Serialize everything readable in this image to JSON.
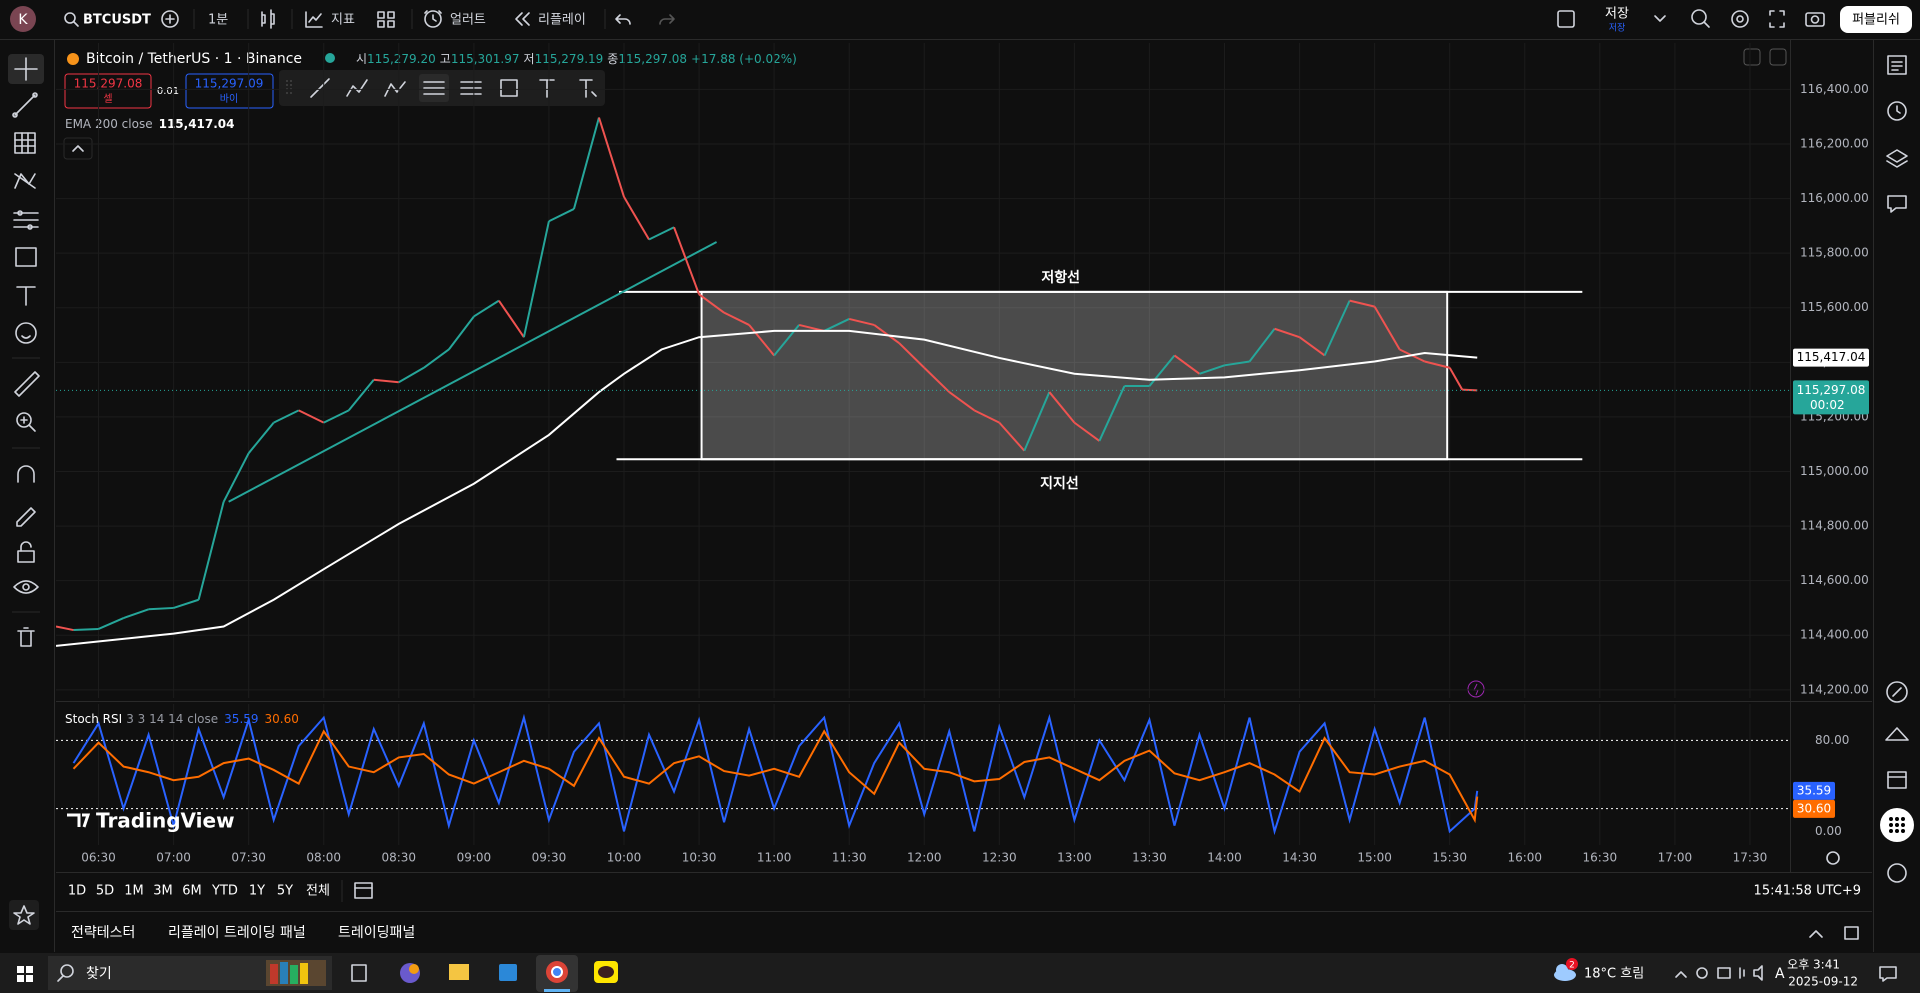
{
  "chart_data": [
    {
      "type": "line",
      "xlim": [
        "06:13",
        "17:46"
      ],
      "ylim": [
        114170,
        116570
      ],
      "xticks": [
        "06:30",
        "07:00",
        "07:30",
        "08:00",
        "08:30",
        "09:00",
        "09:30",
        "10:00",
        "10:30",
        "11:00",
        "11:30",
        "12:00",
        "12:30",
        "13:00",
        "13:30",
        "14:00",
        "14:30",
        "15:00",
        "15:30",
        "16:00",
        "16:30",
        "17:00",
        "17:30"
      ],
      "yticks": [
        {
          "value": 116400,
          "label": "116,400.00"
        },
        {
          "value": 116200,
          "label": "116,200.00"
        },
        {
          "value": 116000,
          "label": "116,000.00"
        },
        {
          "value": 115800,
          "label": "115,800.00"
        },
        {
          "value": 115600,
          "label": "115,600.00"
        },
        {
          "value": 115400,
          "label": "115,400.00"
        },
        {
          "value": 115200,
          "label": "115,200.00"
        },
        {
          "value": 115000,
          "label": "115,000.00"
        },
        {
          "value": 114800,
          "label": "114,800.00"
        },
        {
          "value": 114600,
          "label": "114,600.00"
        },
        {
          "value": 114400,
          "label": "114,400.00"
        },
        {
          "value": 114200,
          "label": "114,200.00"
        }
      ],
      "grid": true,
      "series": [
        {
          "name": "Bitcoin / TetherUS · 1 · Binance",
          "up_color": "#26a69a",
          "down_color": "#ef5350",
          "last_value_label": "115,297.08",
          "x": [
            "06:13",
            "06:20",
            "06:30",
            "06:40",
            "06:50",
            "07:00",
            "07:10",
            "07:20",
            "07:30",
            "07:40",
            "07:50",
            "08:00",
            "08:10",
            "08:20",
            "08:30",
            "08:40",
            "08:50",
            "09:00",
            "09:10",
            "09:20",
            "09:30",
            "09:40",
            "09:50",
            "10:00",
            "10:10",
            "10:20",
            "10:30",
            "10:40",
            "10:50",
            "11:00",
            "11:10",
            "11:20",
            "11:30",
            "11:40",
            "11:50",
            "12:00",
            "12:10",
            "12:20",
            "12:30",
            "12:40",
            "12:50",
            "13:00",
            "13:10",
            "13:20",
            "13:30",
            "13:40",
            "13:50",
            "14:00",
            "14:10",
            "14:20",
            "14:30",
            "14:40",
            "14:50",
            "15:00",
            "15:10",
            "15:20",
            "15:30",
            "15:35",
            "15:41"
          ],
          "values": [
            114432,
            114419,
            114423,
            114463,
            114495,
            114500,
            114530,
            114889,
            115067,
            115179,
            115224,
            115179,
            115224,
            115336,
            115327,
            115380,
            115447,
            115568,
            115626,
            115492,
            115917,
            115962,
            116297,
            116006,
            115850,
            115895,
            115649,
            115582,
            115537,
            115425,
            115537,
            115515,
            115559,
            115537,
            115470,
            115380,
            115291,
            115224,
            115179,
            115076,
            115291,
            115179,
            115112,
            115313,
            115313,
            115425,
            115358,
            115389,
            115403,
            115523,
            115492,
            115425,
            115626,
            115604,
            115447,
            115403,
            115380,
            115300,
            115297.08
          ]
        },
        {
          "name": "EMA 200 close",
          "color": "#ffffff",
          "last_value_label": "115,417.04",
          "x": [
            "06:13",
            "07:00",
            "07:20",
            "07:40",
            "08:00",
            "08:30",
            "09:00",
            "09:30",
            "09:50",
            "10:00",
            "10:15",
            "10:30",
            "11:00",
            "11:30",
            "12:00",
            "12:30",
            "13:00",
            "13:30",
            "14:00",
            "14:30",
            "15:00",
            "15:20",
            "15:41"
          ],
          "values": [
            114361,
            114406,
            114432,
            114530,
            114642,
            114808,
            114955,
            115134,
            115291,
            115358,
            115447,
            115492,
            115515,
            115515,
            115483,
            115416,
            115358,
            115336,
            115345,
            115371,
            115403,
            115434,
            115417.04
          ]
        }
      ],
      "annotations": [
        {
          "type": "hline",
          "label": "저항선",
          "x": [
            "09:58",
            "16:23"
          ],
          "y": 115658,
          "color": "#ffffff"
        },
        {
          "type": "hline",
          "label": "지지선",
          "x": [
            "09:57",
            "16:23"
          ],
          "y": 115045,
          "color": "#ffffff"
        },
        {
          "type": "rect",
          "x": [
            "10:31",
            "15:29"
          ],
          "y": [
            115045,
            115658
          ],
          "color": "#ffffff"
        },
        {
          "type": "trend",
          "x": [
            "07:22",
            "10:37"
          ],
          "y": [
            114889,
            115841
          ],
          "color": "#26a69a"
        }
      ]
    },
    {
      "type": "line",
      "title": "Stoch RSI",
      "subtitle": "3 3 14 14 close",
      "ylim": [
        -12,
        112
      ],
      "yticks": [
        {
          "value": 80,
          "label": "80.00"
        },
        {
          "value": 0,
          "label": "0.00"
        }
      ],
      "bands": [
        80,
        20
      ],
      "x": [
        "06:20",
        "06:30",
        "06:40",
        "06:50",
        "07:00",
        "07:10",
        "07:20",
        "07:30",
        "07:40",
        "07:50",
        "08:00",
        "08:10",
        "08:20",
        "08:30",
        "08:40",
        "08:50",
        "09:00",
        "09:10",
        "09:20",
        "09:30",
        "09:40",
        "09:50",
        "10:00",
        "10:10",
        "10:20",
        "10:30",
        "10:40",
        "10:50",
        "11:00",
        "11:10",
        "11:20",
        "11:30",
        "11:40",
        "11:50",
        "12:00",
        "12:10",
        "12:20",
        "12:30",
        "12:40",
        "12:50",
        "13:00",
        "13:10",
        "13:20",
        "13:30",
        "13:40",
        "13:50",
        "14:00",
        "14:10",
        "14:20",
        "14:30",
        "14:40",
        "14:50",
        "15:00",
        "15:10",
        "15:20",
        "15:30",
        "15:40",
        "15:41"
      ],
      "series": [
        {
          "color": "#2962ff",
          "last_value_label": "35.59",
          "values": [
            60,
            95,
            20,
            85,
            5,
            90,
            30,
            98,
            10,
            75,
            100,
            15,
            90,
            40,
            95,
            5,
            80,
            25,
            100,
            10,
            70,
            95,
            0,
            85,
            35,
            98,
            8,
            90,
            20,
            75,
            100,
            5,
            60,
            95,
            15,
            88,
            0,
            92,
            30,
            100,
            10,
            80,
            45,
            98,
            5,
            85,
            20,
            100,
            0,
            70,
            95,
            10,
            90,
            25,
            100,
            0,
            20,
            35.59
          ]
        },
        {
          "color": "#ff6d00",
          "last_value_label": "30.60",
          "values": [
            55,
            78,
            57,
            52,
            45,
            48,
            60,
            64,
            54,
            42,
            88,
            57,
            52,
            65,
            68,
            50,
            42,
            52,
            62,
            55,
            40,
            82,
            48,
            42,
            60,
            66,
            53,
            49,
            55,
            48,
            88,
            52,
            33,
            78,
            55,
            52,
            44,
            46,
            61,
            65,
            55,
            45,
            62,
            71,
            51,
            45,
            52,
            60,
            50,
            35,
            82,
            52,
            50,
            57,
            62,
            50,
            10,
            30.6
          ]
        }
      ]
    }
  ],
  "ui": {
    "avatar": "K",
    "symbol": "BTCUSDT",
    "interval": "1분",
    "indicators": "지표",
    "alert": "얼러트",
    "replay": "리플레이",
    "save": "저장",
    "save_sub": "저장",
    "publish": "퍼블리쉬",
    "legend": {
      "open_label": "시",
      "open": "115,279.20",
      "high_label": "고",
      "high": "115,301.97",
      "low_label": "저",
      "low": "115,279.19",
      "close_label": "종",
      "close": "115,297.08",
      "change": "+17.88 (+0.02%)"
    },
    "order": {
      "sell_price": "115,297.08",
      "sell": "셀",
      "qty": "0.01",
      "buy_price": "115,297.09",
      "buy": "바이"
    },
    "countdown": "00:02",
    "watermark": "TradingView",
    "ranges": [
      "1D",
      "5D",
      "1M",
      "3M",
      "6M",
      "YTD",
      "1Y",
      "5Y",
      "전체"
    ],
    "clock": "15:41:58 UTC+9",
    "tabs": [
      "전략테스터",
      "리플레이 트레이딩 패널",
      "트레이딩패널"
    ],
    "taskbar": {
      "search": "찾기",
      "notification": "2",
      "weather": "18°C 흐림",
      "time": "오후 3:41",
      "date": "2025-09-12",
      "ime": "A"
    }
  }
}
